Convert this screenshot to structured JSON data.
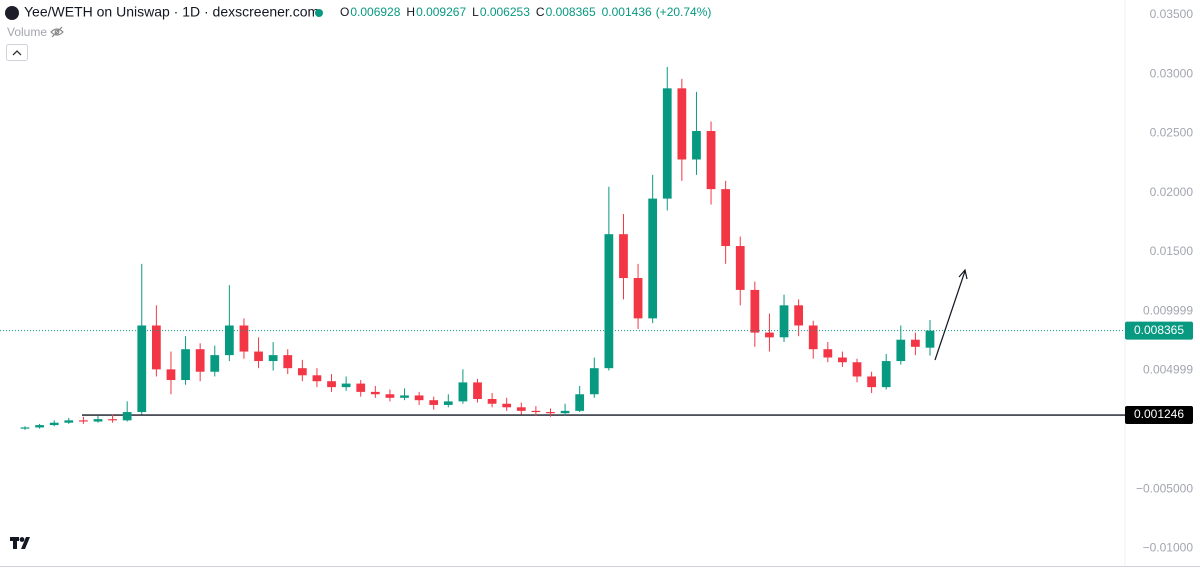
{
  "chart_data": {
    "type": "candlestick",
    "title": "Yee/WETH on Uniswap · 1D · dexscreener.com",
    "volume_label": "Volume",
    "ohlc_keys": [
      "O",
      "H",
      "L",
      "C"
    ],
    "change": 0.001436,
    "change_pct": {
      "value": 20.74,
      "label": "(+20.74%)"
    },
    "up_color": "#089981",
    "down_color": "#f23645",
    "hline": 0.001246,
    "ylim": [
      -0.0114,
      0.03625
    ],
    "yticks": [
      {
        "value": 0.035,
        "label": "0.03500"
      },
      {
        "value": 0.03,
        "label": "0.03000"
      },
      {
        "value": 0.025,
        "label": "0.02500"
      },
      {
        "value": 0.02,
        "label": "0.02000"
      },
      {
        "value": 0.015,
        "label": "0.01500"
      },
      0.009999,
      0.004999,
      {
        "value": -0.005,
        "label": "−0.005000"
      },
      {
        "value": -0.01,
        "label": "−0.01000"
      }
    ],
    "grid": false,
    "ohlc": [
      [
        0.0001,
        0.0003,
        0.0,
        0.0002
      ],
      [
        0.0002,
        0.0005,
        0.0001,
        0.0004
      ],
      [
        0.0004,
        0.0008,
        0.0003,
        0.0006
      ],
      [
        0.0006,
        0.001,
        0.0005,
        0.0008
      ],
      [
        0.0008,
        0.0011,
        0.0005,
        0.0007
      ],
      [
        0.0007,
        0.0012,
        0.0006,
        0.0009
      ],
      [
        0.0009,
        0.0013,
        0.0006,
        0.0008
      ],
      [
        0.0008,
        0.0024,
        0.0007,
        0.0015
      ],
      [
        0.0015,
        0.014,
        0.0013,
        0.0088
      ],
      [
        0.0088,
        0.0105,
        0.0045,
        0.0051
      ],
      [
        0.0051,
        0.0066,
        0.003,
        0.0042
      ],
      [
        0.0042,
        0.0079,
        0.0038,
        0.0068
      ],
      [
        0.0068,
        0.0073,
        0.0041,
        0.0049
      ],
      [
        0.0049,
        0.0071,
        0.0045,
        0.0063
      ],
      [
        0.0063,
        0.0122,
        0.0058,
        0.0088
      ],
      [
        0.0088,
        0.0094,
        0.006,
        0.0066
      ],
      [
        0.0066,
        0.0078,
        0.0052,
        0.0058
      ],
      [
        0.0058,
        0.0074,
        0.005,
        0.0063
      ],
      [
        0.0063,
        0.0068,
        0.0047,
        0.0052
      ],
      [
        0.0052,
        0.0059,
        0.0041,
        0.0046
      ],
      [
        0.0046,
        0.0052,
        0.0036,
        0.0041
      ],
      [
        0.0041,
        0.0047,
        0.0032,
        0.0036
      ],
      [
        0.0036,
        0.0045,
        0.0033,
        0.0039
      ],
      [
        0.0039,
        0.0042,
        0.0028,
        0.0032
      ],
      [
        0.0032,
        0.0037,
        0.0027,
        0.003
      ],
      [
        0.003,
        0.0034,
        0.0024,
        0.0027
      ],
      [
        0.0027,
        0.0035,
        0.0025,
        0.0029
      ],
      [
        0.0029,
        0.0032,
        0.0021,
        0.0025
      ],
      [
        0.0025,
        0.0028,
        0.0017,
        0.0021
      ],
      [
        0.0021,
        0.003,
        0.0019,
        0.0024
      ],
      [
        0.0024,
        0.0051,
        0.0022,
        0.004
      ],
      [
        0.004,
        0.0043,
        0.0023,
        0.0026
      ],
      [
        0.0026,
        0.0031,
        0.0019,
        0.0022
      ],
      [
        0.0022,
        0.0027,
        0.0016,
        0.0019
      ],
      [
        0.0019,
        0.0023,
        0.0013,
        0.0016
      ],
      [
        0.0016,
        0.002,
        0.0012,
        0.0015
      ],
      [
        0.0015,
        0.0018,
        0.0011,
        0.0014
      ],
      [
        0.0014,
        0.0022,
        0.0012,
        0.0016
      ],
      [
        0.0016,
        0.0037,
        0.0015,
        0.003
      ],
      [
        0.003,
        0.0061,
        0.0027,
        0.0052
      ],
      [
        0.0052,
        0.0205,
        0.005,
        0.0165
      ],
      [
        0.0165,
        0.0182,
        0.011,
        0.0128
      ],
      [
        0.0128,
        0.014,
        0.0085,
        0.0094
      ],
      [
        0.0094,
        0.0215,
        0.009,
        0.0195
      ],
      [
        0.0195,
        0.0306,
        0.0185,
        0.0288
      ],
      [
        0.0288,
        0.0296,
        0.021,
        0.0228
      ],
      [
        0.0228,
        0.0285,
        0.0215,
        0.0252
      ],
      [
        0.0252,
        0.026,
        0.019,
        0.0203
      ],
      [
        0.0203,
        0.021,
        0.014,
        0.0155
      ],
      [
        0.0155,
        0.0163,
        0.0105,
        0.0118
      ],
      [
        0.0118,
        0.0125,
        0.007,
        0.0082
      ],
      [
        0.0082,
        0.0098,
        0.0066,
        0.0078
      ],
      [
        0.0078,
        0.0114,
        0.0074,
        0.0105
      ],
      [
        0.0105,
        0.011,
        0.0079,
        0.0088
      ],
      [
        0.0088,
        0.0092,
        0.006,
        0.0068
      ],
      [
        0.0068,
        0.0074,
        0.0057,
        0.0061
      ],
      [
        0.0061,
        0.0066,
        0.0053,
        0.0057
      ],
      [
        0.0057,
        0.006,
        0.004,
        0.0045
      ],
      [
        0.0045,
        0.0049,
        0.0031,
        0.0036
      ],
      [
        0.0036,
        0.0064,
        0.0034,
        0.0058
      ],
      [
        0.0058,
        0.0088,
        0.0055,
        0.0076
      ],
      [
        0.0076,
        0.0082,
        0.0063,
        0.007
      ],
      [
        0.006928,
        0.009267,
        0.006253,
        0.008365
      ]
    ]
  }
}
